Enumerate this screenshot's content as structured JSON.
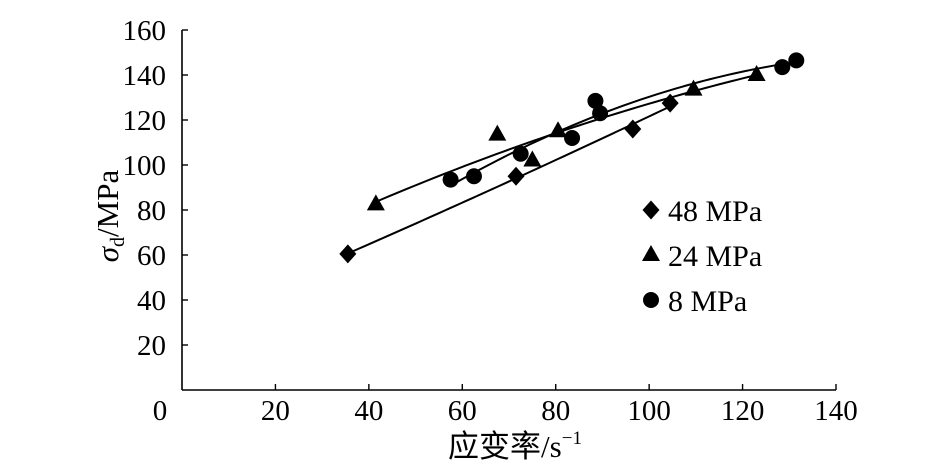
{
  "chart_data": {
    "type": "scatter",
    "xlabel": {
      "text": "应变率/s",
      "superscript": "−1"
    },
    "ylabel": {
      "symbol": "σ",
      "subscript": "d",
      "unit": "/MPa"
    },
    "xlim": [
      0,
      140
    ],
    "ylim": [
      0,
      160
    ],
    "xticks": [
      0,
      20,
      40,
      60,
      80,
      100,
      120,
      140
    ],
    "yticks": [
      20,
      40,
      60,
      80,
      100,
      120,
      140,
      160
    ],
    "grid": false,
    "legend": {
      "position": "center-right"
    },
    "fit_curves": true,
    "background_color": "#ffffff",
    "series": [
      {
        "name": "48 MPa",
        "marker": "diamond",
        "color": "#000000",
        "x": [
          35.5,
          71.5,
          96.5,
          104.5
        ],
        "y": [
          60.5,
          95,
          116,
          127.5
        ]
      },
      {
        "name": "24 MPa",
        "marker": "triangle",
        "color": "#000000",
        "x": [
          41.5,
          67.5,
          75,
          80.5,
          109.5,
          123
        ],
        "y": [
          82.5,
          113.5,
          102,
          115,
          133.5,
          140
        ]
      },
      {
        "name": "8 MPa",
        "marker": "circle",
        "color": "#000000",
        "x": [
          57.5,
          62.5,
          72.5,
          83.5,
          88.5,
          89.5,
          128.5,
          131.5
        ],
        "y": [
          93.5,
          95,
          105,
          112,
          128.5,
          123,
          143.5,
          146.5
        ]
      }
    ]
  }
}
